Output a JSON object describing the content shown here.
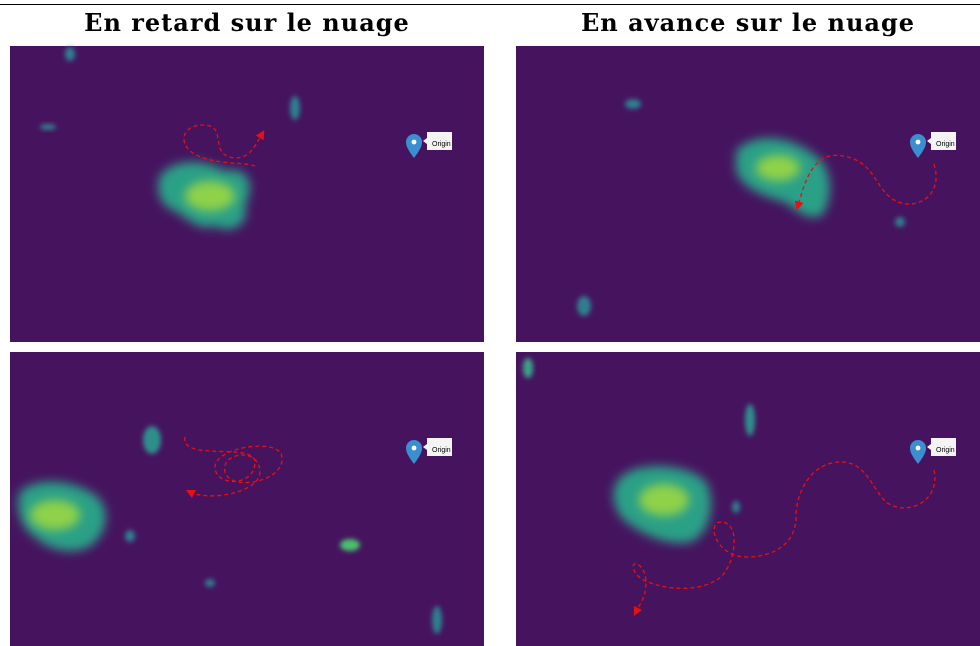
{
  "columns": [
    {
      "title": "En retard sur le nuage"
    },
    {
      "title": "En avance sur le nuage"
    }
  ],
  "panels": [
    {
      "marker_label": "Origin"
    },
    {
      "marker_label": "Origin"
    },
    {
      "marker_label": "Origin"
    },
    {
      "marker_label": "Origin"
    }
  ]
}
